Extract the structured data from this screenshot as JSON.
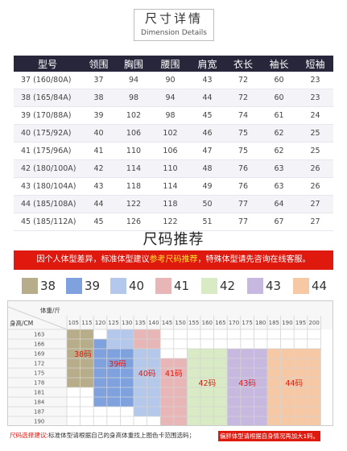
{
  "header": {
    "title": "尺寸详情",
    "subtitle": "Dimension Details"
  },
  "size_table": {
    "headers": [
      "型号",
      "领围",
      "胸围",
      "腰围",
      "肩宽",
      "衣长",
      "袖长",
      "短袖"
    ],
    "rows": [
      [
        "37 (160/80A)",
        "37",
        "94",
        "90",
        "43",
        "72",
        "60",
        "23"
      ],
      [
        "38 (165/84A)",
        "38",
        "98",
        "94",
        "44",
        "72",
        "60",
        "23"
      ],
      [
        "39 (170/88A)",
        "39",
        "102",
        "98",
        "45",
        "74",
        "61",
        "24"
      ],
      [
        "40 (175/92A)",
        "40",
        "106",
        "102",
        "46",
        "75",
        "62",
        "25"
      ],
      [
        "41 (175/96A)",
        "41",
        "110",
        "106",
        "47",
        "75",
        "62",
        "25"
      ],
      [
        "42 (180/100A)",
        "42",
        "114",
        "110",
        "48",
        "76",
        "63",
        "26"
      ],
      [
        "43 (180/104A)",
        "43",
        "118",
        "114",
        "49",
        "76",
        "63",
        "26"
      ],
      [
        "44 (185/108A)",
        "44",
        "122",
        "118",
        "50",
        "77",
        "64",
        "27"
      ],
      [
        "45 (185/112A)",
        "45",
        "126",
        "122",
        "51",
        "77",
        "67",
        "27"
      ]
    ]
  },
  "recommend": {
    "title": "尺码推荐",
    "note_pre": "因个人体型差异，标准体型建议",
    "note_hl": "参考尺码推荐",
    "note_post": "，特殊体型请先咨询在线客服。"
  },
  "legend": [
    {
      "label": "38",
      "color": "#b7ad8a"
    },
    {
      "label": "39",
      "color": "#7fa2de"
    },
    {
      "label": "40",
      "color": "#b3c8ea"
    },
    {
      "label": "41",
      "color": "#e8b6b6"
    },
    {
      "label": "42",
      "color": "#d9ebc4"
    },
    {
      "label": "43",
      "color": "#c7b8e0"
    },
    {
      "label": "44",
      "color": "#f7c8a4"
    }
  ],
  "grid": {
    "weight_label": "体重/斤",
    "height_label": "身高/CM",
    "weights": [
      "105",
      "115",
      "120",
      "125",
      "130",
      "135",
      "140",
      "145",
      "150",
      "155",
      "160",
      "165",
      "170",
      "175",
      "180",
      "185",
      "190",
      "195",
      "200"
    ],
    "heights": [
      "163",
      "166",
      "169",
      "172",
      "175",
      "178",
      "181",
      "184",
      "187",
      "190"
    ],
    "zones": [
      {
        "label": "38码",
        "color": "#b7ad8a"
      },
      {
        "label": "39码",
        "color": "#7fa2de"
      },
      {
        "label": "40码",
        "color": "#b3c8ea"
      },
      {
        "label": "41码",
        "color": "#e8b6b6"
      },
      {
        "label": "42码",
        "color": "#d9ebc4"
      },
      {
        "label": "43码",
        "color": "#c7b8e0"
      },
      {
        "label": "44码",
        "color": "#f7c8a4"
      }
    ],
    "zone_label_color": "#e0190f"
  },
  "footer": {
    "left_title": "尺码选择建议:",
    "left_text": "标准体型请根据自己的身高体重找上图色卡范围选码；",
    "right_text": "偏胖体型请根据自身情况再加大1码。"
  }
}
